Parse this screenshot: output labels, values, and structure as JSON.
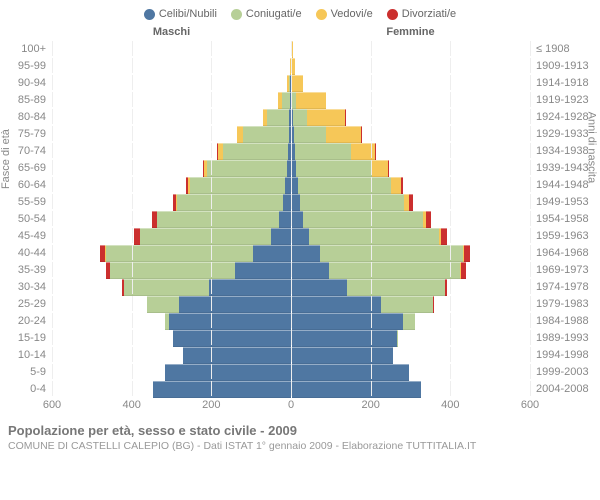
{
  "legend": [
    {
      "label": "Celibi/Nubili",
      "color": "#4f77a2"
    },
    {
      "label": "Coniugati/e",
      "color": "#b7cf97"
    },
    {
      "label": "Vedovi/e",
      "color": "#f6c758"
    },
    {
      "label": "Divorziati/e",
      "color": "#cb2f2e"
    }
  ],
  "header_male": "Maschi",
  "header_female": "Femmine",
  "yaxis_left_title": "Fasce di età",
  "yaxis_right_title": "Anni di nascita",
  "xaxis": {
    "max": 600,
    "ticks": [
      600,
      400,
      200,
      0,
      200,
      400,
      600
    ]
  },
  "age_groups": [
    {
      "age": "100+",
      "birth": "≤ 1908",
      "m": [
        0,
        0,
        0,
        0
      ],
      "f": [
        0,
        0,
        3,
        0
      ]
    },
    {
      "age": "95-99",
      "birth": "1909-1913",
      "m": [
        0,
        0,
        2,
        0
      ],
      "f": [
        0,
        0,
        10,
        0
      ]
    },
    {
      "age": "90-94",
      "birth": "1914-1918",
      "m": [
        1,
        2,
        6,
        0
      ],
      "f": [
        0,
        2,
        28,
        0
      ]
    },
    {
      "age": "85-89",
      "birth": "1919-1923",
      "m": [
        2,
        20,
        10,
        0
      ],
      "f": [
        2,
        10,
        75,
        0
      ]
    },
    {
      "age": "80-84",
      "birth": "1924-1928",
      "m": [
        3,
        55,
        12,
        0
      ],
      "f": [
        4,
        35,
        95,
        1
      ]
    },
    {
      "age": "75-79",
      "birth": "1929-1933",
      "m": [
        5,
        115,
        14,
        0
      ],
      "f": [
        6,
        80,
        90,
        2
      ]
    },
    {
      "age": "70-74",
      "birth": "1934-1938",
      "m": [
        6,
        165,
        12,
        1
      ],
      "f": [
        10,
        140,
        60,
        3
      ]
    },
    {
      "age": "65-69",
      "birth": "1939-1943",
      "m": [
        10,
        200,
        8,
        2
      ],
      "f": [
        12,
        190,
        40,
        3
      ]
    },
    {
      "age": "60-64",
      "birth": "1944-1948",
      "m": [
        14,
        240,
        5,
        4
      ],
      "f": [
        16,
        235,
        25,
        5
      ]
    },
    {
      "age": "55-59",
      "birth": "1949-1953",
      "m": [
        20,
        265,
        3,
        8
      ],
      "f": [
        22,
        260,
        14,
        9
      ]
    },
    {
      "age": "50-54",
      "birth": "1954-1958",
      "m": [
        30,
        305,
        2,
        12
      ],
      "f": [
        30,
        300,
        8,
        14
      ]
    },
    {
      "age": "45-49",
      "birth": "1959-1963",
      "m": [
        48,
        330,
        1,
        15
      ],
      "f": [
        45,
        325,
        5,
        17
      ]
    },
    {
      "age": "40-44",
      "birth": "1964-1968",
      "m": [
        95,
        370,
        1,
        14
      ],
      "f": [
        72,
        360,
        3,
        15
      ]
    },
    {
      "age": "35-39",
      "birth": "1969-1973",
      "m": [
        140,
        315,
        0,
        10
      ],
      "f": [
        95,
        330,
        2,
        11
      ]
    },
    {
      "age": "30-34",
      "birth": "1974-1978",
      "m": [
        205,
        215,
        0,
        5
      ],
      "f": [
        140,
        245,
        1,
        6
      ]
    },
    {
      "age": "25-29",
      "birth": "1979-1983",
      "m": [
        280,
        80,
        0,
        1
      ],
      "f": [
        225,
        130,
        0,
        2
      ]
    },
    {
      "age": "20-24",
      "birth": "1984-1988",
      "m": [
        305,
        10,
        0,
        0
      ],
      "f": [
        280,
        30,
        0,
        0
      ]
    },
    {
      "age": "15-19",
      "birth": "1989-1993",
      "m": [
        295,
        0,
        0,
        0
      ],
      "f": [
        265,
        2,
        0,
        0
      ]
    },
    {
      "age": "10-14",
      "birth": "1994-1998",
      "m": [
        270,
        0,
        0,
        0
      ],
      "f": [
        255,
        0,
        0,
        0
      ]
    },
    {
      "age": "5-9",
      "birth": "1999-2003",
      "m": [
        315,
        0,
        0,
        0
      ],
      "f": [
        295,
        0,
        0,
        0
      ]
    },
    {
      "age": "0-4",
      "birth": "2004-2008",
      "m": [
        345,
        0,
        0,
        0
      ],
      "f": [
        325,
        0,
        0,
        0
      ]
    }
  ],
  "title": "Popolazione per età, sesso e stato civile - 2009",
  "subtitle": "COMUNE DI CASTELLI CALEPIO (BG) - Dati ISTAT 1° gennaio 2009 - Elaborazione TUTTITALIA.IT",
  "colors": {
    "single": "#4f77a2",
    "married": "#b7cf97",
    "widowed": "#f6c758",
    "divorced": "#cb2f2e"
  }
}
